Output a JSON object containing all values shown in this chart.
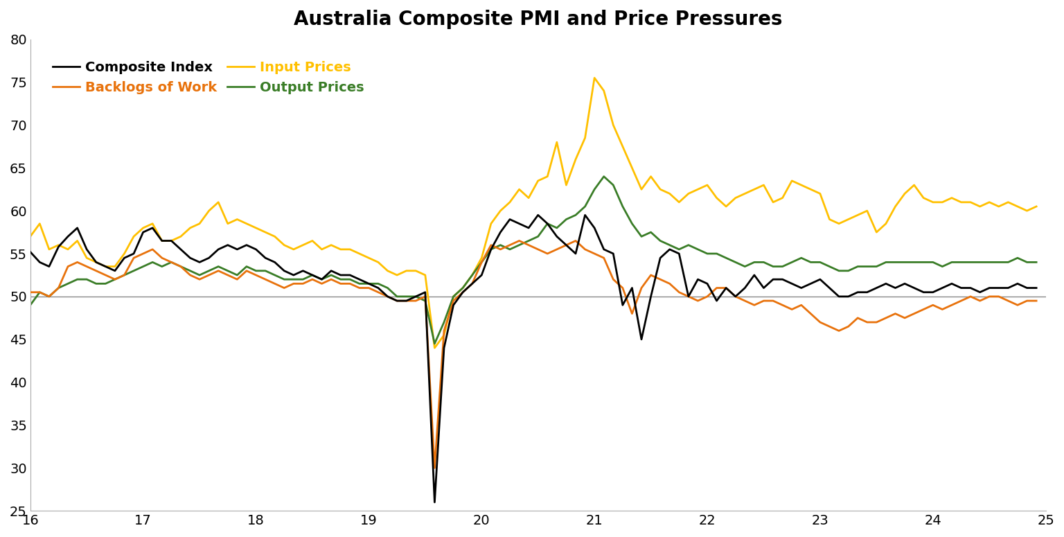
{
  "title": "Australia Composite PMI and Price Pressures",
  "title_fontsize": 20,
  "xlim": [
    16,
    25
  ],
  "ylim": [
    25,
    80
  ],
  "yticks": [
    25,
    30,
    35,
    40,
    45,
    50,
    55,
    60,
    65,
    70,
    75,
    80
  ],
  "xticks": [
    16,
    17,
    18,
    19,
    20,
    21,
    22,
    23,
    24,
    25
  ],
  "reference_line": 50,
  "colors": {
    "composite": "#000000",
    "backlogs": "#E8720C",
    "input": "#FFC000",
    "output": "#3A7D27"
  },
  "line_width": 2.0,
  "composite_index": [
    55.2,
    54.0,
    53.5,
    55.8,
    57.0,
    58.0,
    55.5,
    54.0,
    53.5,
    53.0,
    54.5,
    55.0,
    57.5,
    58.0,
    56.5,
    56.5,
    55.5,
    54.5,
    54.0,
    54.5,
    55.5,
    56.0,
    55.5,
    56.0,
    55.5,
    54.5,
    54.0,
    53.0,
    52.5,
    53.0,
    52.5,
    52.0,
    53.0,
    52.5,
    52.5,
    52.0,
    51.5,
    51.0,
    50.0,
    49.5,
    49.5,
    50.0,
    50.5,
    26.0,
    44.0,
    49.0,
    50.5,
    51.5,
    52.5,
    55.5,
    57.5,
    59.0,
    58.5,
    58.0,
    59.5,
    58.5,
    57.0,
    56.0,
    55.0,
    59.5,
    58.0,
    55.5,
    55.0,
    49.0,
    51.0,
    45.0,
    50.0,
    54.5,
    55.5,
    55.0,
    50.0,
    52.0,
    51.5,
    49.5,
    51.0,
    50.0,
    51.0,
    52.5,
    51.0,
    52.0,
    52.0,
    51.5,
    51.0,
    51.5,
    52.0,
    51.0,
    50.0,
    50.0,
    50.5,
    50.5,
    51.0,
    51.5,
    51.0,
    51.5,
    51.0,
    50.5,
    50.5,
    51.0,
    51.5,
    51.0,
    51.0,
    50.5,
    51.0,
    51.0,
    51.0,
    51.5,
    51.0,
    51.0
  ],
  "backlogs_of_work": [
    50.5,
    50.5,
    50.0,
    51.0,
    53.5,
    54.0,
    53.5,
    53.0,
    52.5,
    52.0,
    52.5,
    54.5,
    55.0,
    55.5,
    54.5,
    54.0,
    53.5,
    52.5,
    52.0,
    52.5,
    53.0,
    52.5,
    52.0,
    53.0,
    52.5,
    52.0,
    51.5,
    51.0,
    51.5,
    51.5,
    52.0,
    51.5,
    52.0,
    51.5,
    51.5,
    51.0,
    51.0,
    50.5,
    50.0,
    49.5,
    49.5,
    49.5,
    50.0,
    30.0,
    46.0,
    49.5,
    50.5,
    51.5,
    54.0,
    56.0,
    55.5,
    56.0,
    56.5,
    56.0,
    55.5,
    55.0,
    55.5,
    56.0,
    56.5,
    55.5,
    55.0,
    54.5,
    52.0,
    51.0,
    48.0,
    51.0,
    52.5,
    52.0,
    51.5,
    50.5,
    50.0,
    49.5,
    50.0,
    51.0,
    51.0,
    50.0,
    49.5,
    49.0,
    49.5,
    49.5,
    49.0,
    48.5,
    49.0,
    48.0,
    47.0,
    46.5,
    46.0,
    46.5,
    47.5,
    47.0,
    47.0,
    47.5,
    48.0,
    47.5,
    48.0,
    48.5,
    49.0,
    48.5,
    49.0,
    49.5,
    50.0,
    49.5,
    50.0,
    50.0,
    49.5,
    49.0,
    49.5,
    49.5
  ],
  "input_prices": [
    57.0,
    58.5,
    55.5,
    56.0,
    55.5,
    56.5,
    54.5,
    54.0,
    53.5,
    53.5,
    55.0,
    57.0,
    58.0,
    58.5,
    56.5,
    56.5,
    57.0,
    58.0,
    58.5,
    60.0,
    61.0,
    58.5,
    59.0,
    58.5,
    58.0,
    57.5,
    57.0,
    56.0,
    55.5,
    56.0,
    56.5,
    55.5,
    56.0,
    55.5,
    55.5,
    55.0,
    54.5,
    54.0,
    53.0,
    52.5,
    53.0,
    53.0,
    52.5,
    44.0,
    45.5,
    50.0,
    51.0,
    52.5,
    54.5,
    58.5,
    60.0,
    61.0,
    62.5,
    61.5,
    63.5,
    64.0,
    68.0,
    63.0,
    66.0,
    68.5,
    75.5,
    74.0,
    70.0,
    67.5,
    65.0,
    62.5,
    64.0,
    62.5,
    62.0,
    61.0,
    62.0,
    62.5,
    63.0,
    61.5,
    60.5,
    61.5,
    62.0,
    62.5,
    63.0,
    61.0,
    61.5,
    63.5,
    63.0,
    62.5,
    62.0,
    59.0,
    58.5,
    59.0,
    59.5,
    60.0,
    57.5,
    58.5,
    60.5,
    62.0,
    63.0,
    61.5,
    61.0,
    61.0,
    61.5,
    61.0,
    61.0,
    60.5,
    61.0,
    60.5,
    61.0,
    60.5,
    60.0,
    60.5
  ],
  "output_prices": [
    49.0,
    50.5,
    50.0,
    51.0,
    51.5,
    52.0,
    52.0,
    51.5,
    51.5,
    52.0,
    52.5,
    53.0,
    53.5,
    54.0,
    53.5,
    54.0,
    53.5,
    53.0,
    52.5,
    53.0,
    53.5,
    53.0,
    52.5,
    53.5,
    53.0,
    53.0,
    52.5,
    52.0,
    52.0,
    52.0,
    52.5,
    52.0,
    52.5,
    52.0,
    52.0,
    51.5,
    51.5,
    51.5,
    51.0,
    50.0,
    50.0,
    50.0,
    49.5,
    44.5,
    47.0,
    50.0,
    51.0,
    52.5,
    54.0,
    55.5,
    56.0,
    55.5,
    56.0,
    56.5,
    57.0,
    58.5,
    58.0,
    59.0,
    59.5,
    60.5,
    62.5,
    64.0,
    63.0,
    60.5,
    58.5,
    57.0,
    57.5,
    56.5,
    56.0,
    55.5,
    56.0,
    55.5,
    55.0,
    55.0,
    54.5,
    54.0,
    53.5,
    54.0,
    54.0,
    53.5,
    53.5,
    54.0,
    54.5,
    54.0,
    54.0,
    53.5,
    53.0,
    53.0,
    53.5,
    53.5,
    53.5,
    54.0,
    54.0,
    54.0,
    54.0,
    54.0,
    54.0,
    53.5,
    54.0,
    54.0,
    54.0,
    54.0,
    54.0,
    54.0,
    54.0,
    54.5,
    54.0,
    54.0
  ]
}
